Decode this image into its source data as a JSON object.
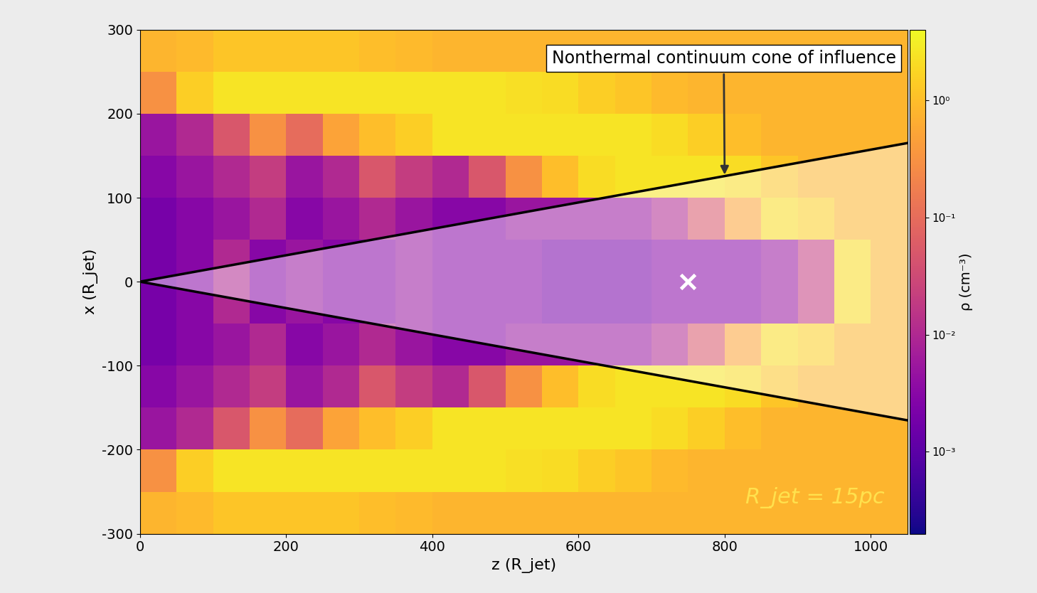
{
  "chart_data": {
    "type": "heatmap",
    "xlabel": "z (R_jet)",
    "ylabel": "x (R_jet)",
    "xlim": [
      0,
      1050
    ],
    "ylim": [
      -300,
      300
    ],
    "xticks": [
      0,
      200,
      400,
      600,
      800,
      1000
    ],
    "yticks": [
      -300,
      -200,
      -100,
      0,
      100,
      200,
      300
    ],
    "x_edges": [
      0,
      50,
      100,
      150,
      200,
      250,
      300,
      350,
      400,
      450,
      500,
      550,
      600,
      650,
      700,
      750,
      800,
      850,
      900,
      950,
      1000,
      1050
    ],
    "y_edges": [
      -300,
      -250,
      -200,
      -150,
      -100,
      -50,
      0,
      50,
      100,
      150,
      200,
      250,
      300
    ],
    "cells": [
      [
        0.8,
        0.9,
        1.2,
        1.2,
        1.2,
        1.2,
        1.0,
        0.9,
        0.8,
        0.8,
        0.8,
        0.8,
        0.8,
        0.8,
        0.8,
        0.8,
        0.8,
        0.8,
        0.8,
        0.8,
        0.8
      ],
      [
        0.3,
        1.5,
        2.5,
        2.5,
        2.5,
        2.5,
        2.5,
        2.5,
        2.5,
        2.5,
        2.2,
        2.0,
        1.5,
        1.2,
        0.9,
        0.8,
        0.8,
        0.8,
        0.8,
        0.8,
        0.8
      ],
      [
        0.005,
        0.01,
        0.05,
        0.3,
        0.1,
        0.5,
        1.0,
        1.5,
        2.5,
        2.5,
        2.5,
        2.5,
        2.5,
        2.5,
        2.0,
        1.5,
        1.0,
        0.8,
        0.8,
        0.8,
        0.8
      ],
      [
        0.003,
        0.005,
        0.01,
        0.02,
        0.005,
        0.01,
        0.05,
        0.02,
        0.01,
        0.05,
        0.3,
        1.0,
        2.0,
        2.5,
        2.5,
        2.5,
        2.0,
        1.2,
        0.8,
        0.8,
        0.8
      ],
      [
        0.002,
        0.003,
        0.005,
        0.01,
        0.003,
        0.005,
        0.01,
        0.005,
        0.003,
        0.003,
        0.005,
        0.005,
        0.005,
        0.005,
        0.01,
        0.05,
        0.5,
        2.0,
        1.5,
        0.8,
        0.8
      ],
      [
        0.002,
        0.003,
        0.01,
        0.003,
        0.005,
        0.003,
        0.003,
        0.005,
        0.003,
        0.003,
        0.003,
        0.002,
        0.002,
        0.002,
        0.003,
        0.003,
        0.003,
        0.005,
        0.02,
        2.0,
        0.8
      ],
      [
        0.002,
        0.003,
        0.01,
        0.003,
        0.005,
        0.003,
        0.003,
        0.005,
        0.003,
        0.003,
        0.003,
        0.002,
        0.002,
        0.002,
        0.003,
        0.003,
        0.003,
        0.005,
        0.02,
        2.0,
        0.8
      ],
      [
        0.002,
        0.003,
        0.005,
        0.01,
        0.003,
        0.005,
        0.01,
        0.005,
        0.003,
        0.003,
        0.005,
        0.005,
        0.005,
        0.005,
        0.01,
        0.05,
        0.5,
        2.0,
        1.5,
        0.8,
        0.8
      ],
      [
        0.003,
        0.005,
        0.01,
        0.02,
        0.005,
        0.01,
        0.05,
        0.02,
        0.01,
        0.05,
        0.3,
        1.0,
        2.0,
        2.5,
        2.5,
        2.5,
        2.0,
        1.2,
        0.8,
        0.8,
        0.8
      ],
      [
        0.005,
        0.01,
        0.05,
        0.3,
        0.1,
        0.5,
        1.0,
        1.5,
        2.5,
        2.5,
        2.5,
        2.5,
        2.5,
        2.5,
        2.0,
        1.5,
        1.0,
        0.8,
        0.8,
        0.8,
        0.8
      ],
      [
        0.3,
        1.5,
        2.5,
        2.5,
        2.5,
        2.5,
        2.5,
        2.5,
        2.5,
        2.5,
        2.2,
        2.0,
        1.5,
        1.2,
        0.9,
        0.8,
        0.8,
        0.8,
        0.8,
        0.8,
        0.8
      ],
      [
        0.8,
        0.9,
        1.2,
        1.2,
        1.2,
        1.2,
        1.0,
        0.9,
        0.8,
        0.8,
        0.8,
        0.8,
        0.8,
        0.8,
        0.8,
        0.8,
        0.8,
        0.8,
        0.8,
        0.8,
        0.8
      ]
    ],
    "colorbar": {
      "label": "ρ (cm⁻³)",
      "log": true,
      "range": [
        0.0002,
        4
      ],
      "ticks": [
        {
          "value": 1,
          "label": "10⁰"
        },
        {
          "value": 0.1,
          "label": "10⁻¹"
        },
        {
          "value": 0.01,
          "label": "10⁻²"
        },
        {
          "value": 0.001,
          "label": "10⁻³"
        }
      ]
    },
    "cone": {
      "z": [
        0,
        1050,
        1050
      ],
      "x": [
        0,
        165,
        -165
      ]
    },
    "point": {
      "z": 750,
      "x": 0,
      "marker": "x",
      "color": "white"
    },
    "annotation": {
      "text": "Nonthermal continuum cone of influence",
      "z": 800,
      "x": 125
    },
    "note": "R_jet = 15pc"
  }
}
